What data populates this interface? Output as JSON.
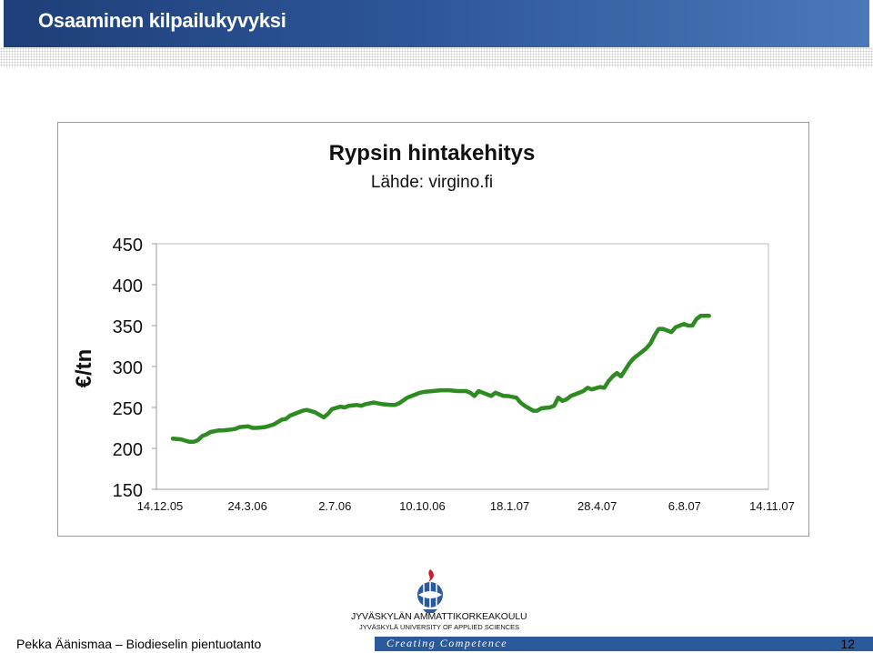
{
  "header": {
    "title": "Osaaminen kilpailukyvyksi"
  },
  "chart_data": {
    "type": "line",
    "title": "Rypsin hintakehitys",
    "subtitle": "Lähde: virgino.fi",
    "ylabel": "€/tn",
    "xlabel": "",
    "ylim": [
      150,
      450
    ],
    "yticks": [
      150,
      200,
      250,
      300,
      350,
      400,
      450
    ],
    "xtick_labels": [
      "14.12.05",
      "24.3.06",
      "2.7.06",
      "10.10.06",
      "18.1.07",
      "28.4.07",
      "6.8.07",
      "14.11.07"
    ],
    "xlim": [
      0,
      700
    ],
    "grid": false,
    "legend": "none",
    "series_color": "#2e8b22",
    "series": [
      {
        "x": [
          0,
          10,
          20,
          25,
          30,
          35,
          40,
          45,
          55,
          60,
          70,
          75,
          80,
          90,
          95,
          100,
          110,
          120,
          130,
          135,
          140,
          150,
          155,
          160,
          170,
          180,
          185,
          190,
          200,
          205,
          210,
          220,
          225,
          230,
          235,
          240,
          250,
          260,
          265,
          270,
          280,
          290,
          295,
          300,
          310,
          320,
          330,
          340,
          350,
          355,
          360,
          365,
          370,
          380,
          385,
          390,
          395,
          400,
          410,
          415,
          420,
          430,
          435,
          440,
          450,
          455,
          460,
          465,
          470,
          475,
          480,
          490,
          495,
          500,
          510,
          515,
          520,
          525,
          530,
          535,
          540,
          545,
          550,
          560,
          565,
          570,
          575,
          580,
          585,
          590,
          595,
          600,
          605,
          610,
          615,
          620,
          625,
          630,
          635,
          640
        ],
        "y": [
          212,
          211,
          208,
          208,
          210,
          215,
          217,
          220,
          222,
          222,
          223,
          224,
          226,
          227,
          225,
          225,
          226,
          229,
          235,
          236,
          240,
          244,
          246,
          247,
          244,
          238,
          242,
          248,
          251,
          250,
          252,
          253,
          252,
          254,
          255,
          256,
          254,
          253,
          253,
          255,
          262,
          266,
          268,
          269,
          270,
          271,
          271,
          270,
          270,
          268,
          264,
          270,
          268,
          264,
          268,
          266,
          264,
          264,
          262,
          256,
          252,
          246,
          246,
          249,
          250,
          252,
          262,
          258,
          260,
          264,
          266,
          270,
          274,
          272,
          275,
          274,
          282,
          288,
          292,
          288,
          296,
          304,
          310,
          318,
          322,
          328,
          338,
          346,
          346,
          344,
          342,
          348,
          350,
          352,
          350,
          350,
          358,
          362,
          362,
          362
        ]
      }
    ]
  },
  "footer": {
    "left": "Pekka Äänismaa – Biodieselin pientuotanto",
    "university": "JYVÄSKYLÄN AMMATTIKORKEAKOULU",
    "university_en": "JYVÄSKYLÄ UNIVERSITY OF APPLIED SCIENCES",
    "slogan": "Creating Competence",
    "page": "12"
  }
}
